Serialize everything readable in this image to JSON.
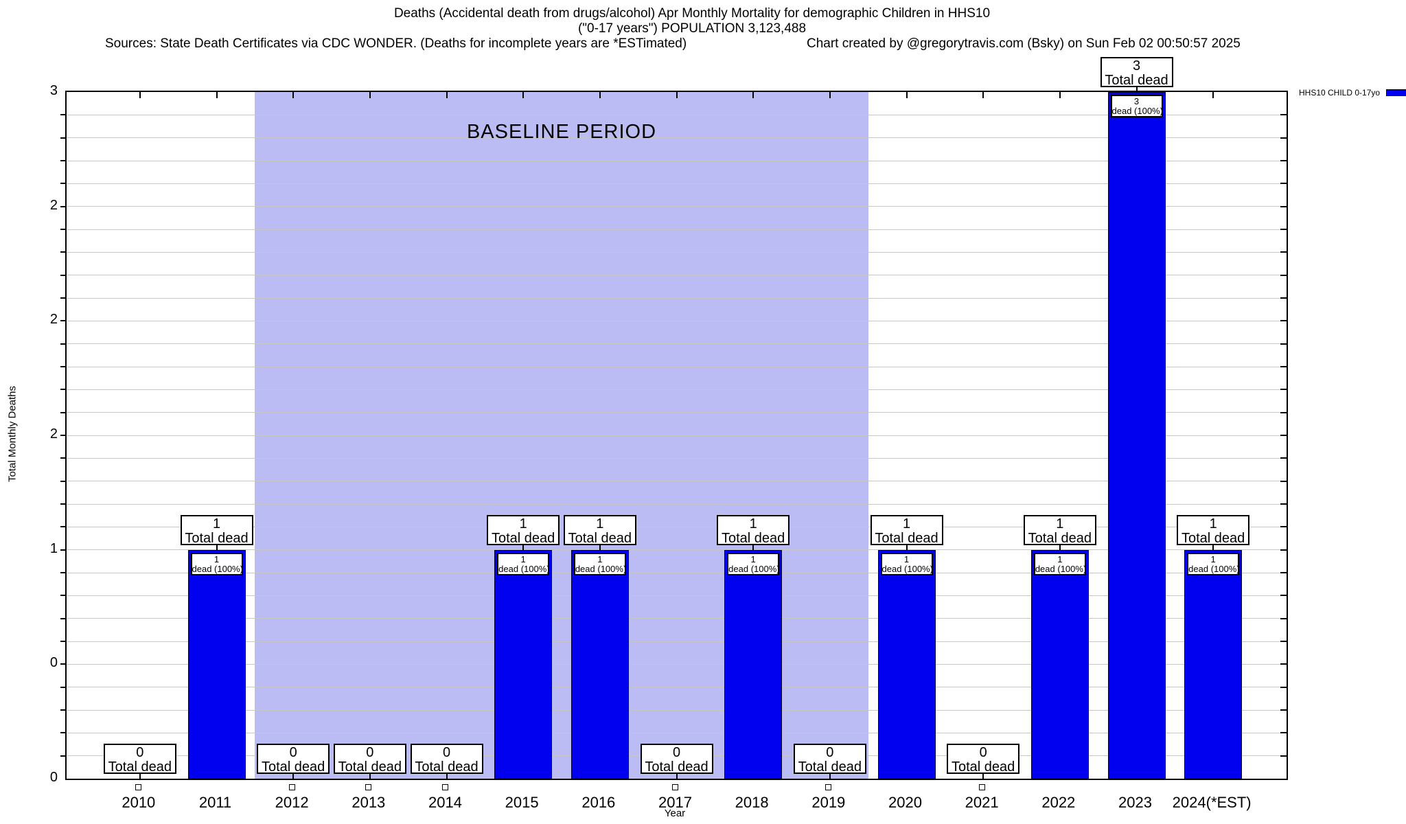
{
  "header": {
    "title_line1": "Deaths (Accidental death from drugs/alcohol) Apr Monthly Mortality for demographic Children in HHS10",
    "title_line2": "(\"0-17 years\") POPULATION 3,123,488",
    "sources": "Sources: State Death Certificates via CDC WONDER. (Deaths for incomplete years are *ESTimated)",
    "credit": "Chart created by @gregorytravis.com (Bsky) on Sun Feb 02 00:50:57 2025"
  },
  "chart_data": {
    "type": "bar",
    "title": "Deaths (Accidental death from drugs/alcohol) Apr Monthly Mortality for demographic Children in HHS10 (\"0-17 years\") POPULATION 3,123,488",
    "xlabel": "Year",
    "ylabel": "Total Monthly Deaths",
    "ylim": [
      0,
      3
    ],
    "grid": "horizontal minor gridlines every 0.1",
    "legend_position": "top-right outside plot",
    "series_name": "HHS10 CHILD 0-17yo",
    "bar_color": "#0101ef",
    "categories": [
      "2010",
      "2011",
      "2012",
      "2013",
      "2014",
      "2015",
      "2016",
      "2017",
      "2018",
      "2019",
      "2020",
      "2021",
      "2022",
      "2023",
      "2024(*EST)"
    ],
    "values": [
      0,
      1,
      0,
      0,
      0,
      1,
      1,
      0,
      1,
      0,
      1,
      0,
      1,
      3,
      1
    ],
    "ytick_values": [
      0,
      0.5,
      1,
      1.5,
      2,
      2.5,
      3
    ],
    "ytick_labels_bottom_to_top": [
      "0",
      "0",
      "1",
      "2",
      "2",
      "2",
      "3"
    ],
    "annotations": {
      "above_bar_label": "Total dead",
      "inside_bar_label": "dead (100%)"
    },
    "baseline_period": {
      "label": "BASELINE PERIOD",
      "start_category": "2012",
      "end_category": "2019",
      "fill": "#bcbcf4"
    }
  }
}
